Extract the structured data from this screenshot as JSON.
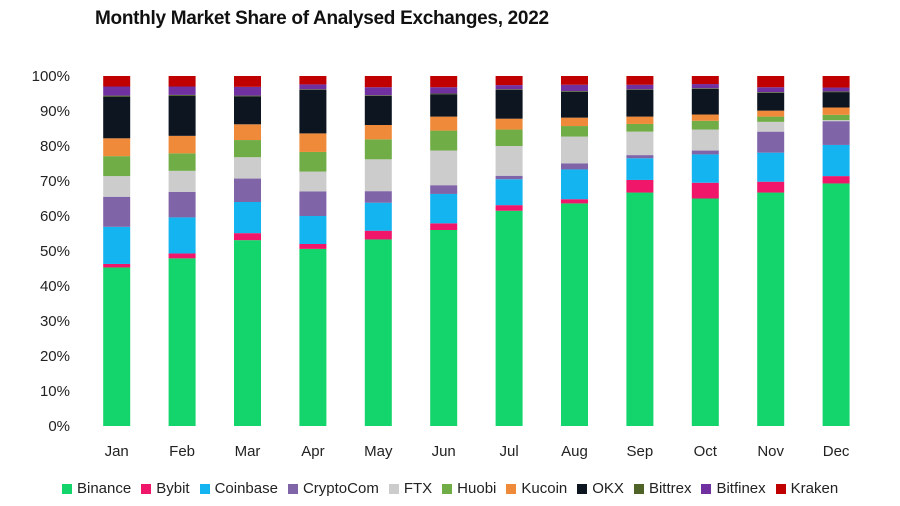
{
  "chart_data": {
    "type": "bar",
    "stacked": true,
    "title": "Monthly Market Share of Analysed Exchanges, 2022",
    "xlabel": "",
    "ylabel": "",
    "ylim": [
      0,
      100
    ],
    "yticks": [
      "0%",
      "10%",
      "20%",
      "30%",
      "40%",
      "50%",
      "60%",
      "70%",
      "80%",
      "90%",
      "100%"
    ],
    "grid": false,
    "legend_position": "bottom",
    "categories": [
      "Jan",
      "Feb",
      "Mar",
      "Apr",
      "May",
      "Jun",
      "Jul",
      "Aug",
      "Sep",
      "Oct",
      "Nov",
      "Dec"
    ],
    "series": [
      {
        "name": "Binance",
        "color": "#14d46c",
        "values": [
          45.3,
          47.9,
          53.1,
          50.6,
          53.3,
          56.0,
          61.5,
          63.6,
          66.7,
          65.0,
          66.7,
          69.3
        ]
      },
      {
        "name": "Bybit",
        "color": "#f0166a",
        "values": [
          1.0,
          1.4,
          2.0,
          1.4,
          2.5,
          1.9,
          1.6,
          1.2,
          3.6,
          4.5,
          3.1,
          2.1
        ]
      },
      {
        "name": "Coinbase",
        "color": "#13b4ef",
        "values": [
          10.6,
          10.3,
          8.9,
          8.0,
          8.0,
          8.4,
          7.4,
          8.5,
          6.2,
          8.1,
          8.3,
          8.9
        ]
      },
      {
        "name": "CryptoCom",
        "color": "#8064a8",
        "values": [
          8.6,
          7.3,
          6.7,
          7.0,
          3.3,
          2.5,
          1.0,
          1.7,
          0.9,
          1.1,
          6.0,
          6.8
        ]
      },
      {
        "name": "FTX",
        "color": "#cccccc",
        "values": [
          5.9,
          6.0,
          6.1,
          5.7,
          9.1,
          9.9,
          8.5,
          7.7,
          6.7,
          6.0,
          2.8,
          0.3
        ]
      },
      {
        "name": "Huobi",
        "color": "#70ad47",
        "values": [
          5.7,
          5.0,
          4.9,
          5.6,
          5.7,
          5.7,
          4.7,
          3.0,
          2.2,
          2.5,
          1.5,
          1.5
        ]
      },
      {
        "name": "Kucoin",
        "color": "#ef8a3a",
        "values": [
          5.1,
          5.0,
          4.5,
          5.3,
          4.1,
          4.0,
          3.1,
          2.4,
          2.1,
          1.8,
          1.7,
          2.1
        ]
      },
      {
        "name": "OKX",
        "color": "#0d1520",
        "values": [
          11.9,
          11.4,
          8.0,
          12.4,
          8.3,
          6.4,
          8.2,
          7.4,
          7.6,
          7.3,
          5.1,
          4.4
        ]
      },
      {
        "name": "Bittrex",
        "color": "#4f6228",
        "values": [
          0.3,
          0.3,
          0.2,
          0.2,
          0.2,
          0.2,
          0.2,
          0.2,
          0.2,
          0.2,
          0.2,
          0.2
        ]
      },
      {
        "name": "Bitfinex",
        "color": "#7030a0",
        "values": [
          2.6,
          2.4,
          2.5,
          1.4,
          2.3,
          1.8,
          1.2,
          1.8,
          1.3,
          1.2,
          1.4,
          1.1
        ]
      },
      {
        "name": "Kraken",
        "color": "#c00000",
        "values": [
          3.0,
          3.0,
          3.1,
          2.4,
          3.2,
          3.2,
          2.6,
          2.5,
          2.5,
          2.3,
          3.2,
          3.3
        ]
      }
    ]
  }
}
